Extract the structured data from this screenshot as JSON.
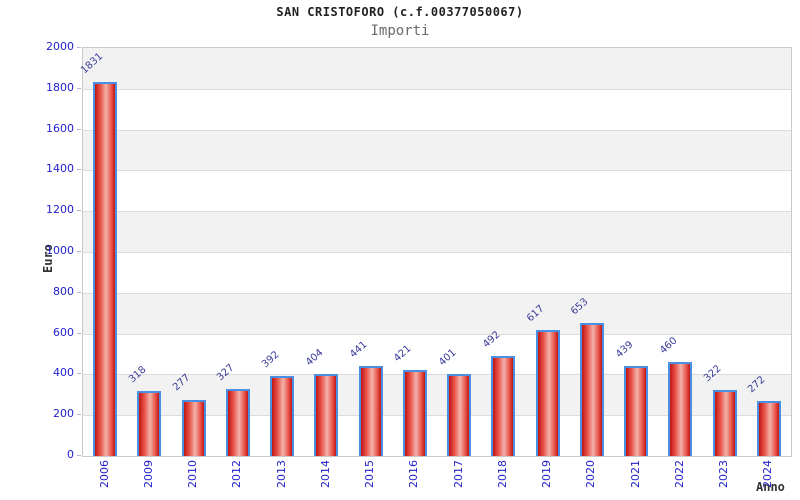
{
  "chart_data": {
    "type": "bar",
    "title": "SAN CRISTOFORO (c.f.00377050067)",
    "subtitle": "Importi",
    "xlabel": "Anno",
    "ylabel": "Euro",
    "categories": [
      "2006",
      "2009",
      "2010",
      "2012",
      "2013",
      "2014",
      "2015",
      "2016",
      "2017",
      "2018",
      "2019",
      "2020",
      "2021",
      "2022",
      "2023",
      "2024"
    ],
    "values": [
      1831,
      318,
      277,
      327,
      392,
      404,
      441,
      421,
      401,
      492,
      617,
      653,
      439,
      460,
      322,
      272
    ],
    "ylim": [
      0,
      2000
    ],
    "ytick_step": 200,
    "yticks": [
      "0",
      "200",
      "400",
      "600",
      "800",
      "1000",
      "1200",
      "1400",
      "1600",
      "1800",
      "2000"
    ],
    "grid": "horizontal-only",
    "legend_position": "none",
    "background_bands": "alternating light-gray / white every 200 units"
  },
  "colors": {
    "bar_border": "#4a90e2",
    "bar_edge_red": "#c21414",
    "bar_mid_red": "#e8564a",
    "bar_highlight": "#f2b2ab",
    "tick_label_blue": "#2222cc",
    "value_label_navy": "#3a3a99",
    "band_gray": "#f2f2f2",
    "gridline_gray": "#dcdcdc",
    "plot_border": "#c9c9c9",
    "title_color": "#222222",
    "subtitle_color": "#6b6b6b",
    "axis_title_color": "#333333"
  }
}
